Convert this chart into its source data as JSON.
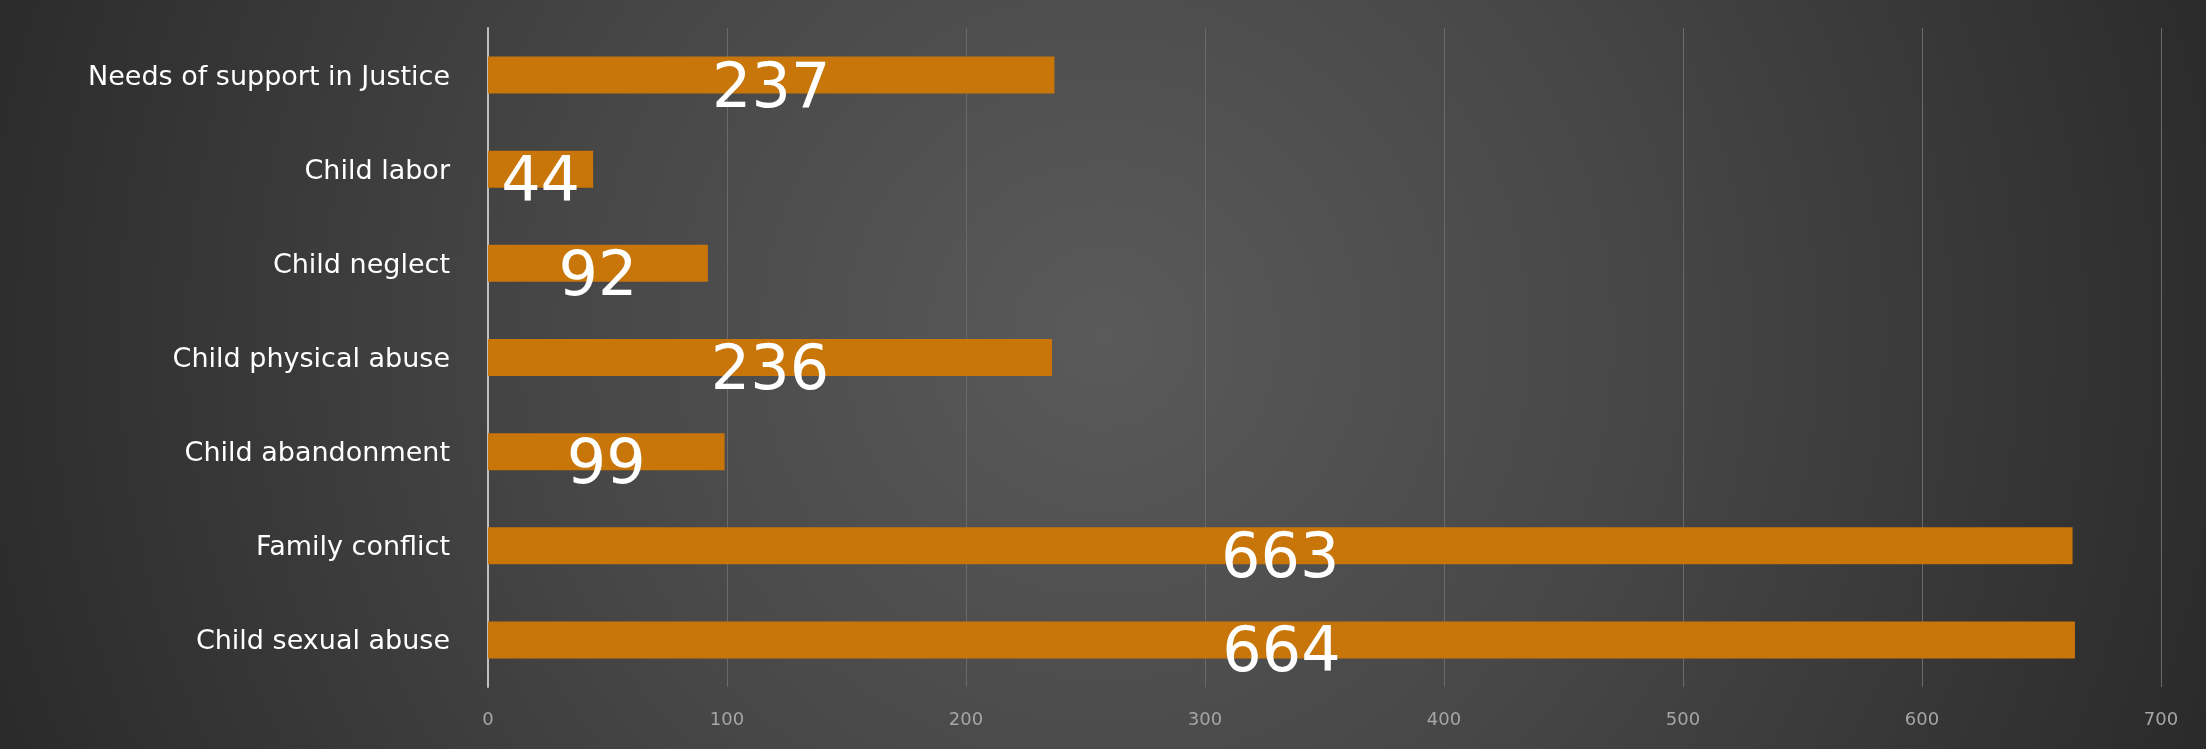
{
  "chart_data": {
    "type": "bar",
    "orientation": "horizontal",
    "categories": [
      "Needs of support in Justice",
      "Child labor",
      "Child neglect",
      "Child physical abuse",
      "Child abandonment",
      "Family conflict",
      "Child sexual abuse"
    ],
    "values": [
      237,
      44,
      92,
      236,
      99,
      663,
      664
    ],
    "color": "#c8760a",
    "xlim": [
      0,
      700
    ],
    "xticks": [
      0,
      100,
      200,
      300,
      400,
      500,
      600,
      700
    ],
    "grid": "x",
    "data_labels": true
  }
}
